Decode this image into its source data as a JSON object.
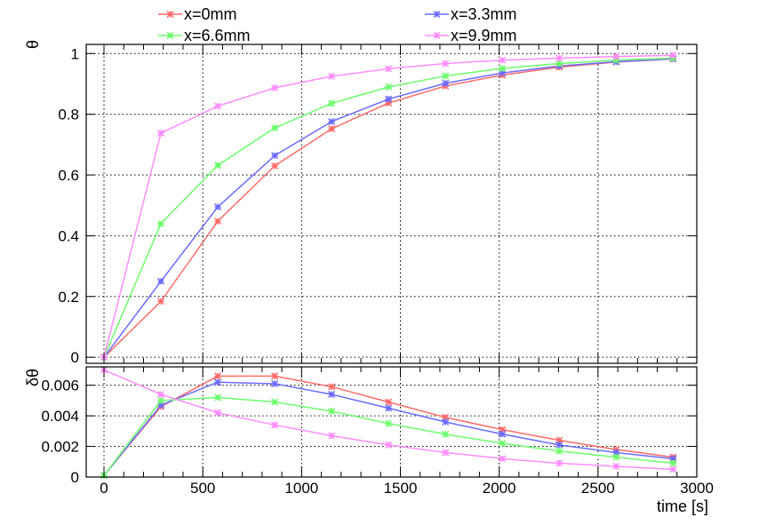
{
  "chart_data": [
    {
      "type": "line",
      "panel": "top",
      "ylabel": "θ",
      "xlim": [
        -90,
        3000
      ],
      "ylim": [
        -0.02,
        1.03
      ],
      "yticks": [
        0,
        0.2,
        0.4,
        0.6,
        0.8,
        1
      ],
      "ytick_labels": [
        "0",
        "0.2",
        "0.4",
        "0.6",
        "0.8",
        "1"
      ],
      "x": [
        0,
        288,
        576,
        864,
        1152,
        1440,
        1728,
        2016,
        2304,
        2592,
        2880
      ],
      "series": [
        {
          "name": "x=0mm",
          "color": "#ff6b6b",
          "values": [
            0,
            0.184,
            0.448,
            0.63,
            0.752,
            0.837,
            0.893,
            0.929,
            0.955,
            0.972,
            0.982
          ]
        },
        {
          "name": "x=3.3mm",
          "color": "#6b6bff",
          "values": [
            0,
            0.25,
            0.495,
            0.664,
            0.776,
            0.85,
            0.902,
            0.936,
            0.959,
            0.973,
            0.983
          ]
        },
        {
          "name": "x=6.6mm",
          "color": "#6bff6b",
          "values": [
            0,
            0.44,
            0.632,
            0.755,
            0.836,
            0.89,
            0.926,
            0.951,
            0.967,
            0.978,
            0.985
          ]
        },
        {
          "name": "x=9.9mm",
          "color": "#ff8cff",
          "values": [
            0,
            0.738,
            0.827,
            0.887,
            0.925,
            0.95,
            0.967,
            0.978,
            0.985,
            0.99,
            0.994
          ]
        }
      ],
      "grid": true,
      "legend": "top"
    },
    {
      "type": "line",
      "panel": "bottom",
      "xlabel": "time [s]",
      "ylabel": "δθ",
      "xlim": [
        -90,
        3000
      ],
      "ylim": [
        0,
        0.0072
      ],
      "xticks": [
        0,
        500,
        1000,
        1500,
        2000,
        2500,
        3000
      ],
      "xtick_labels": [
        "0",
        "500",
        "1000",
        "1500",
        "2000",
        "2500",
        "3000"
      ],
      "yticks": [
        0,
        0.002,
        0.004,
        0.006
      ],
      "ytick_labels": [
        "0",
        "0.002",
        "0.004",
        "0.006"
      ],
      "x": [
        0,
        288,
        576,
        864,
        1152,
        1440,
        1728,
        2016,
        2304,
        2592,
        2880
      ],
      "series": [
        {
          "name": "x=0mm",
          "color": "#ff6b6b",
          "values": [
            0.0001,
            0.0046,
            0.0066,
            0.0066,
            0.0059,
            0.0049,
            0.0039,
            0.0031,
            0.0024,
            0.0018,
            0.0013
          ]
        },
        {
          "name": "x=3.3mm",
          "color": "#6b6bff",
          "values": [
            0.0001,
            0.0047,
            0.0062,
            0.0061,
            0.0054,
            0.0045,
            0.0036,
            0.0028,
            0.0021,
            0.0016,
            0.0012
          ]
        },
        {
          "name": "x=6.6mm",
          "color": "#6bff6b",
          "values": [
            0.0001,
            0.005,
            0.0052,
            0.0049,
            0.0043,
            0.0035,
            0.0028,
            0.0022,
            0.0017,
            0.0013,
            0.0009
          ]
        },
        {
          "name": "x=9.9mm",
          "color": "#ff8cff",
          "values": [
            0.007,
            0.0054,
            0.0042,
            0.0034,
            0.0027,
            0.0021,
            0.0016,
            0.0012,
            0.0009,
            0.0007,
            0.0005
          ]
        }
      ],
      "grid": true
    }
  ]
}
